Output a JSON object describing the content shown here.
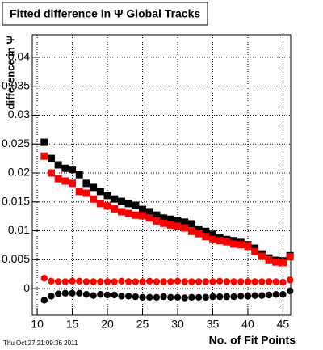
{
  "chart_data": {
    "type": "scatter",
    "title": "Fitted difference in Ψ   Global Tracks",
    "x_label": "No. of Fit Points",
    "y_label": "difference in Ψ",
    "footer": "Thu Oct 27 21:09:36 2011",
    "x": [
      11,
      12,
      13,
      14,
      15,
      16,
      17,
      18,
      19,
      20,
      21,
      22,
      23,
      24,
      25,
      26,
      27,
      28,
      29,
      30,
      31,
      32,
      33,
      34,
      35,
      36,
      37,
      38,
      39,
      40,
      41,
      42,
      43,
      44,
      45,
      46
    ],
    "series": [
      {
        "color": "#000000",
        "marker": "square",
        "values": [
          0.0253,
          0.0225,
          0.0214,
          0.0208,
          0.0206,
          0.0197,
          0.0182,
          0.0175,
          0.0168,
          0.0161,
          0.0155,
          0.0151,
          0.0147,
          0.0144,
          0.0137,
          0.0133,
          0.0127,
          0.0122,
          0.012,
          0.0117,
          0.0115,
          0.0112,
          0.0103,
          0.0099,
          0.0094,
          0.0088,
          0.0085,
          0.0083,
          0.008,
          0.0076,
          0.007,
          0.006,
          0.0053,
          0.0049,
          0.0048,
          0.0057
        ]
      },
      {
        "color": "#ff0000",
        "marker": "square",
        "values": [
          0.0229,
          0.02,
          0.019,
          0.0186,
          0.0182,
          0.0168,
          0.0165,
          0.0155,
          0.0147,
          0.0143,
          0.0138,
          0.0133,
          0.013,
          0.0127,
          0.0126,
          0.0122,
          0.0117,
          0.0113,
          0.011,
          0.0108,
          0.0105,
          0.0099,
          0.0095,
          0.009,
          0.0085,
          0.0083,
          0.0081,
          0.0077,
          0.0076,
          0.0073,
          0.0064,
          0.0056,
          0.005,
          0.0046,
          0.0045,
          0.0055
        ]
      },
      {
        "color": "#ff0000",
        "marker": "circle",
        "values": [
          0.0018,
          0.0013,
          0.0012,
          0.0012,
          0.0013,
          0.0013,
          0.0012,
          0.0012,
          0.0012,
          0.0012,
          0.0012,
          0.0013,
          0.0012,
          0.0012,
          0.0012,
          0.0013,
          0.0012,
          0.0012,
          0.0012,
          0.0013,
          0.0012,
          0.0012,
          0.0012,
          0.0012,
          0.0012,
          0.0013,
          0.0012,
          0.0012,
          0.0012,
          0.0012,
          0.0012,
          0.0012,
          0.0012,
          0.0012,
          0.0011,
          0.0015
        ]
      },
      {
        "color": "#000000",
        "marker": "circle",
        "values": [
          -0.002,
          -0.0013,
          -0.0009,
          -0.0008,
          -0.0008,
          -0.0008,
          -0.001,
          -0.0012,
          -0.001,
          -0.0011,
          -0.0011,
          -0.0013,
          -0.0013,
          -0.0014,
          -0.0015,
          -0.0015,
          -0.0015,
          -0.0014,
          -0.0015,
          -0.0015,
          -0.0016,
          -0.0015,
          -0.0015,
          -0.0015,
          -0.0014,
          -0.0014,
          -0.0014,
          -0.0014,
          -0.0013,
          -0.0013,
          -0.0012,
          -0.0012,
          -0.0011,
          -0.001,
          -0.001,
          -0.0004
        ]
      }
    ],
    "xlim": [
      9.3,
      46.1
    ],
    "xticks": [
      10,
      15,
      20,
      25,
      30,
      35,
      40,
      45
    ],
    "ylim": [
      -0.0046,
      0.0439
    ],
    "yticks": [
      0,
      0.005,
      0.01,
      0.015,
      0.02,
      0.025,
      0.03,
      0.035,
      0.04
    ],
    "grid": true
  }
}
